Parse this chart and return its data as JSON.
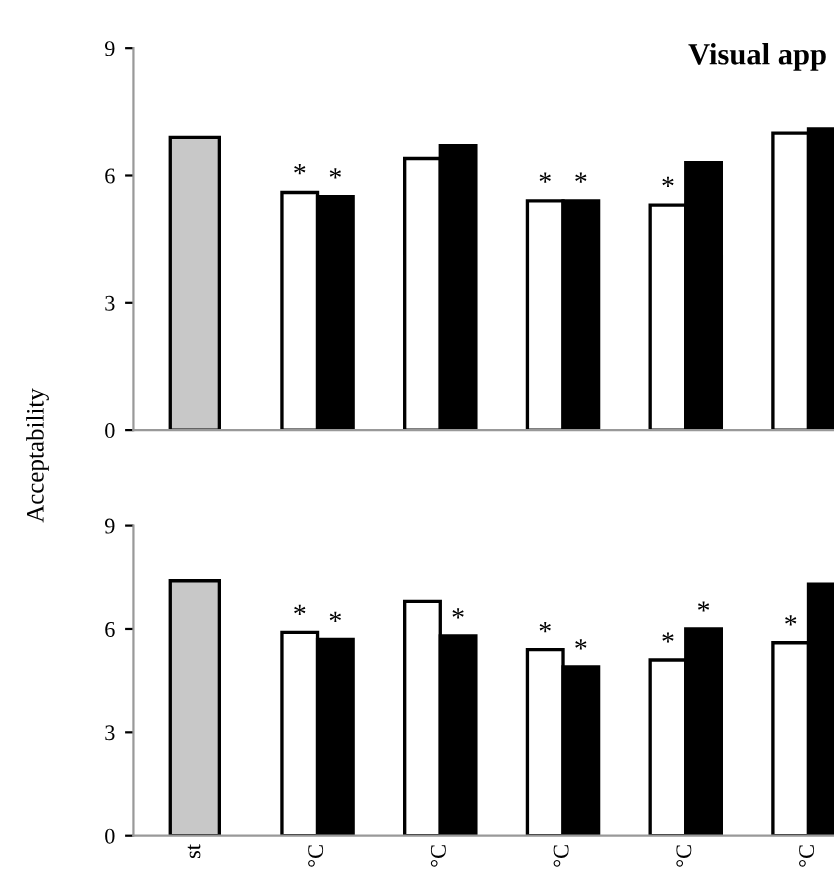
{
  "chart_data": [
    {
      "type": "bar",
      "title": "Visual app",
      "ylabel": "Acceptability",
      "categories": [
        null,
        null,
        null,
        null,
        null,
        null
      ],
      "ylim": [
        0,
        9
      ],
      "yticks": [
        0,
        3,
        6,
        9
      ],
      "tick_labels": "y",
      "grid": false,
      "legend": false,
      "series": [
        {
          "color": "#c8c8c8",
          "values": [
            6.9,
            null,
            null,
            null,
            null,
            null
          ]
        },
        {
          "color": "#ffffff",
          "values": [
            null,
            5.6,
            6.4,
            5.4,
            5.3,
            7.0
          ],
          "value_labels": [
            null,
            "*",
            null,
            "*",
            "*",
            null
          ]
        },
        {
          "color": "#000000",
          "values": [
            null,
            5.5,
            6.7,
            5.4,
            6.3,
            7.1
          ],
          "value_labels": [
            null,
            "*",
            null,
            "*",
            null,
            null
          ]
        }
      ]
    },
    {
      "type": "bar",
      "categories": [
        "st",
        "°C",
        "°C",
        "°C",
        "°C",
        "°C"
      ],
      "ylim": [
        0,
        9
      ],
      "yticks": [
        0,
        3,
        6,
        9
      ],
      "grid": false,
      "legend": false,
      "series": [
        {
          "color": "#c8c8c8",
          "values": [
            7.4,
            null,
            null,
            null,
            null,
            null
          ]
        },
        {
          "color": "#ffffff",
          "values": [
            null,
            5.9,
            6.8,
            5.4,
            5.1,
            5.6
          ],
          "value_labels": [
            null,
            "*",
            null,
            "*",
            "*",
            "*"
          ]
        },
        {
          "color": "#000000",
          "values": [
            null,
            5.7,
            5.8,
            4.9,
            6.0,
            7.3
          ],
          "value_labels": [
            null,
            "*",
            "*",
            "*",
            "*",
            null
          ]
        }
      ]
    }
  ]
}
